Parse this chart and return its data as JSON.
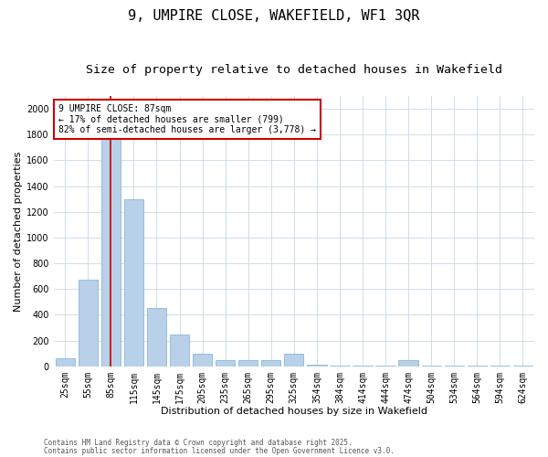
{
  "title1": "9, UMPIRE CLOSE, WAKEFIELD, WF1 3QR",
  "title2": "Size of property relative to detached houses in Wakefield",
  "xlabel": "Distribution of detached houses by size in Wakefield",
  "ylabel": "Number of detached properties",
  "categories": [
    "25sqm",
    "55sqm",
    "85sqm",
    "115sqm",
    "145sqm",
    "175sqm",
    "205sqm",
    "235sqm",
    "265sqm",
    "295sqm",
    "325sqm",
    "354sqm",
    "384sqm",
    "414sqm",
    "444sqm",
    "474sqm",
    "504sqm",
    "534sqm",
    "564sqm",
    "594sqm",
    "624sqm"
  ],
  "values": [
    65,
    670,
    1880,
    1300,
    450,
    250,
    100,
    50,
    50,
    45,
    100,
    15,
    5,
    5,
    5,
    45,
    5,
    5,
    5,
    5,
    5
  ],
  "bar_color": "#b8d0e8",
  "bar_edge_color": "#7aaed4",
  "vline_color": "#cc0000",
  "vline_pos": 2.0,
  "annotation_text": "9 UMPIRE CLOSE: 87sqm\n← 17% of detached houses are smaller (799)\n82% of semi-detached houses are larger (3,778) →",
  "annotation_box_color": "#cc0000",
  "ylim": [
    0,
    2100
  ],
  "yticks": [
    0,
    200,
    400,
    600,
    800,
    1000,
    1200,
    1400,
    1600,
    1800,
    2000
  ],
  "footnote1": "Contains HM Land Registry data © Crown copyright and database right 2025.",
  "footnote2": "Contains public sector information licensed under the Open Government Licence v3.0.",
  "background_color": "#ffffff",
  "grid_color": "#c8d8e8",
  "title_fontsize": 11,
  "subtitle_fontsize": 9.5,
  "axis_label_fontsize": 8,
  "tick_fontsize": 7,
  "annot_fontsize": 7,
  "footnote_fontsize": 5.5
}
